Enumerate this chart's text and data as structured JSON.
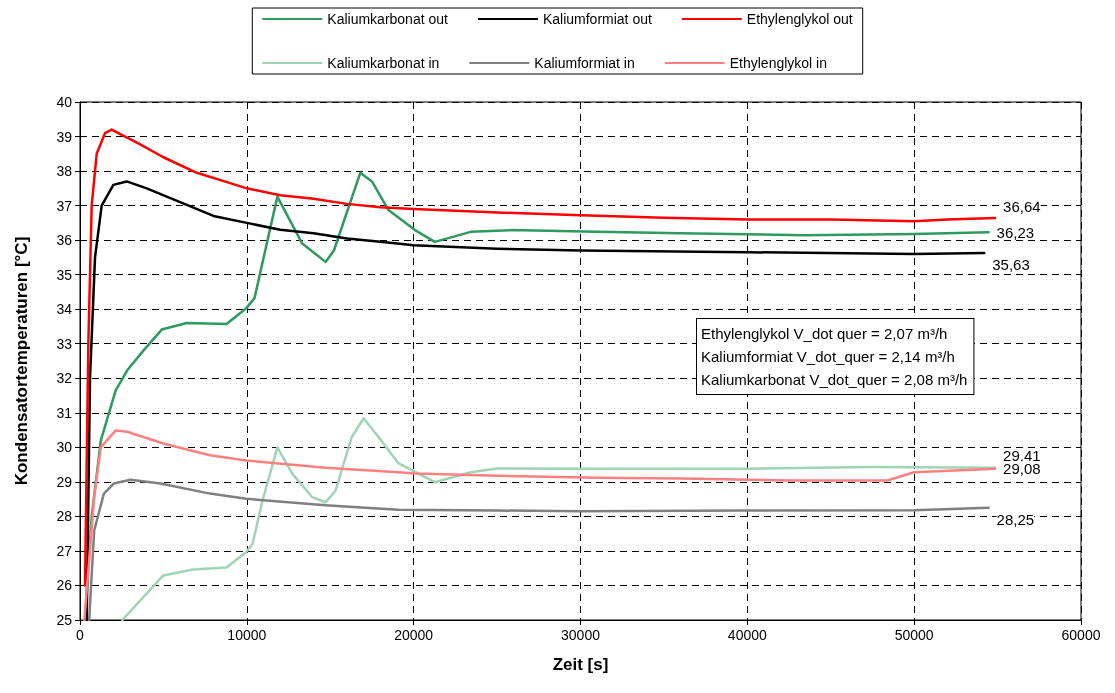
{
  "chart_data": {
    "type": "line",
    "xlabel": "Zeit [s]",
    "ylabel": "Kondensatortemperaturen [°C]",
    "xlim": [
      0,
      60000
    ],
    "xticks": [
      0,
      10000,
      20000,
      30000,
      40000,
      50000,
      60000
    ],
    "ylim": [
      25,
      40
    ],
    "yticks": [
      25,
      26,
      27,
      28,
      29,
      30,
      31,
      32,
      33,
      34,
      35,
      36,
      37,
      38,
      39,
      40
    ],
    "grid": true,
    "legend": "top",
    "marker": "none",
    "line_style": "solid",
    "series": [
      {
        "name": "Kaliumkarbonat out",
        "color": "#2e9a5e",
        "x": [
          300,
          700,
          1250,
          2140,
          2830,
          3800,
          4900,
          6400,
          8780,
          9970,
          10460,
          11830,
          13320,
          14720,
          15220,
          16800,
          17500,
          18490,
          20080,
          21270,
          23420,
          25800,
          30970,
          36000,
          43460,
          50000,
          54460
        ],
        "values": [
          25,
          28,
          30.2,
          31.65,
          32.23,
          32.8,
          33.41,
          33.6,
          33.57,
          34.03,
          34.32,
          37.26,
          35.9,
          35.37,
          35.7,
          37.95,
          37.7,
          36.87,
          36.29,
          35.95,
          36.24,
          36.29,
          36.24,
          36.2,
          36.14,
          36.18,
          36.23
        ]
      },
      {
        "name": "Kaliumformiat out",
        "color": "#000000",
        "x": [
          400,
          600,
          900,
          1300,
          2000,
          2800,
          4000,
          6000,
          8000,
          10000,
          12000,
          14000,
          16000,
          18000,
          20000,
          25000,
          30000,
          40000,
          50000,
          54200
        ],
        "values": [
          25,
          32,
          35.5,
          37,
          37.6,
          37.7,
          37.5,
          37.1,
          36.7,
          36.5,
          36.3,
          36.2,
          36.05,
          35.95,
          35.85,
          35.75,
          35.7,
          35.65,
          35.6,
          35.63
        ]
      },
      {
        "name": "Ethylenglykol out",
        "color": "#ff0000",
        "x": [
          300,
          500,
          700,
          1000,
          1500,
          1900,
          2500,
          3500,
          5000,
          7000,
          9000,
          10000,
          12000,
          14000,
          16000,
          18000,
          20000,
          25000,
          30000,
          35000,
          40000,
          45000,
          50000,
          52000,
          54850
        ],
        "values": [
          26,
          33,
          37,
          38.5,
          39.1,
          39.2,
          39.05,
          38.8,
          38.4,
          37.95,
          37.65,
          37.5,
          37.3,
          37.2,
          37.05,
          36.95,
          36.9,
          36.8,
          36.72,
          36.65,
          36.6,
          36.6,
          36.55,
          36.6,
          36.64
        ]
      },
      {
        "name": "Kaliumkarbonat in",
        "color": "#9fd4b4",
        "x": [
          2540,
          3800,
          4990,
          6780,
          8780,
          9970,
          10340,
          10940,
          11830,
          12720,
          13910,
          14720,
          15320,
          16290,
          17000,
          17890,
          19080,
          21270,
          23420,
          25030,
          30000,
          40000,
          47420,
          54850
        ],
        "values": [
          25,
          25.66,
          26.29,
          26.46,
          26.52,
          26.97,
          27.2,
          28.46,
          30,
          29.24,
          28.56,
          28.41,
          28.75,
          30.3,
          30.84,
          30.3,
          29.54,
          28.99,
          29.28,
          29.39,
          29.38,
          29.38,
          29.43,
          29.41
        ]
      },
      {
        "name": "Kaliumformiat in",
        "color": "#808080",
        "x": [
          550,
          850,
          1430,
          2020,
          3030,
          4820,
          7790,
          9970,
          14720,
          19080,
          25000,
          30000,
          40000,
          50000,
          54460
        ],
        "values": [
          25,
          27.59,
          28.66,
          28.95,
          29.06,
          28.95,
          28.66,
          28.51,
          28.32,
          28.19,
          28.17,
          28.15,
          28.17,
          28.18,
          28.25
        ]
      },
      {
        "name": "Ethylenglykol in",
        "color": "#ff8080",
        "x": [
          260,
          850,
          1250,
          2140,
          2830,
          4990,
          7790,
          9970,
          14720,
          19080,
          20080,
          25000,
          30970,
          36000,
          42450,
          48390,
          50000,
          54850
        ],
        "values": [
          25,
          28.56,
          30,
          30.49,
          30.45,
          30.11,
          29.77,
          29.62,
          29.41,
          29.28,
          29.24,
          29.18,
          29.12,
          29.1,
          29.04,
          29.04,
          29.28,
          29.38
        ]
      }
    ],
    "annotations": [
      {
        "text": "36,64",
        "x": 54850,
        "y": 36.64
      },
      {
        "text": "36,23",
        "x": 54460,
        "y": 36.23
      },
      {
        "text": "35,63",
        "x": 54200,
        "y": 35.63
      },
      {
        "text": "29,41",
        "x": 54850,
        "y": 29.41
      },
      {
        "text": "29,08",
        "x": 54850,
        "y": 29.38
      },
      {
        "text": "28,25",
        "x": 54460,
        "y": 28.25
      },
      "Ethylenglykol V_dot quer = 2,07 m³/h",
      "Kaliumformiat V_dot_quer = 2,14 m³/h",
      "Kaliumkarbonat V_dot_quer = 2,08 m³/h"
    ]
  }
}
